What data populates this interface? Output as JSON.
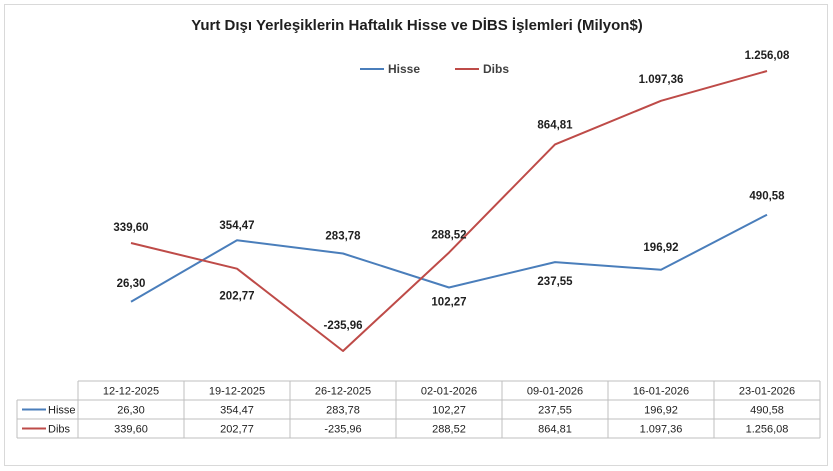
{
  "chart_data": {
    "type": "line",
    "title": "Yurt Dışı Yerleşiklerin Haftalık Hisse ve DİBS İşlemleri (Milyon$)",
    "categories": [
      "12-12-2025",
      "19-12-2025",
      "26-12-2025",
      "02-01-2026",
      "09-01-2026",
      "16-01-2026",
      "23-01-2026"
    ],
    "series": [
      {
        "name": "Hisse",
        "color": "#4a7ebb",
        "values": [
          26.3,
          354.47,
          283.78,
          102.27,
          237.55,
          196.92,
          490.58
        ],
        "labels": [
          "26,30",
          "354,47",
          "283,78",
          "102,27",
          "237,55",
          "196,92",
          "490,58"
        ]
      },
      {
        "name": "Dibs",
        "color": "#be4b48",
        "values": [
          339.6,
          202.77,
          -235.96,
          288.52,
          864.81,
          1097.36,
          1256.08
        ],
        "labels": [
          "339,60",
          "202,77",
          "-235,96",
          "288,52",
          "864,81",
          "1.097,36",
          "1.256,08"
        ]
      }
    ],
    "legend_position": "top-center",
    "grid": false,
    "data_table": true
  }
}
